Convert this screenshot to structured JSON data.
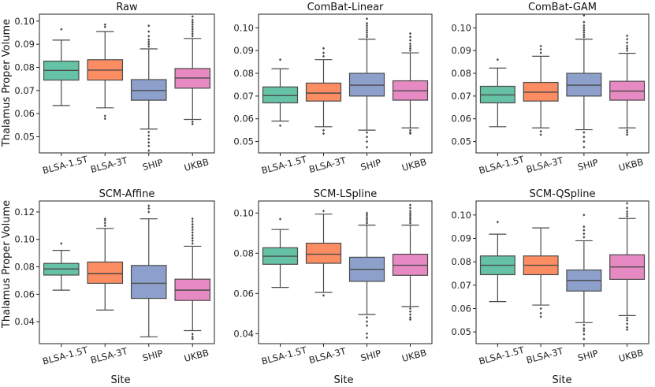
{
  "figure": {
    "ylabel": "Thalamus Proper Volume",
    "xlabel": "Site"
  },
  "colors": {
    "BLSA-1.5T": "#66c2a5",
    "BLSA-3T": "#fc8d62",
    "SHIP": "#8da0cb",
    "UKBB": "#e78ac3",
    "line": "#4a4a4a"
  },
  "chart_data": [
    {
      "type": "box",
      "title": "Raw",
      "categories": [
        "BLSA-1.5T",
        "BLSA-3T",
        "SHIP",
        "UKBB"
      ],
      "ylim": [
        0.043,
        0.103
      ],
      "yticks": [
        0.05,
        0.06,
        0.07,
        0.08,
        0.09,
        0.1
      ],
      "ytick_labels": [
        "0.05",
        "0.06",
        "0.07",
        "0.08",
        "0.09",
        "0.10"
      ],
      "boxes": [
        {
          "min": 0.0635,
          "q1": 0.0745,
          "median": 0.0787,
          "q3": 0.0827,
          "max": 0.0918,
          "outliers": [
            0.0965
          ]
        },
        {
          "min": 0.0625,
          "q1": 0.0745,
          "median": 0.0788,
          "q3": 0.0833,
          "max": 0.0955,
          "outliers": [
            0.0975,
            0.0985,
            0.059,
            0.0578
          ]
        },
        {
          "min": 0.0533,
          "q1": 0.0658,
          "median": 0.07,
          "q3": 0.0747,
          "max": 0.088,
          "outliers": [
            0.089,
            0.09,
            0.091,
            0.092,
            0.0935,
            0.0955,
            0.098,
            0.052,
            0.0505,
            0.049,
            0.0475,
            0.046,
            0.044
          ]
        },
        {
          "min": 0.0575,
          "q1": 0.071,
          "median": 0.0754,
          "q3": 0.0795,
          "max": 0.0925,
          "outliers": [
            0.0935,
            0.0945,
            0.0955,
            0.0965,
            0.0975,
            0.0985,
            0.0995,
            0.1005,
            0.102,
            0.0565,
            0.0555
          ]
        }
      ]
    },
    {
      "type": "box",
      "title": "ComBat-Linear",
      "categories": [
        "BLSA-1.5T",
        "BLSA-3T",
        "SHIP",
        "UKBB"
      ],
      "ylim": [
        0.045,
        0.106
      ],
      "yticks": [
        0.05,
        0.06,
        0.07,
        0.08,
        0.09,
        0.1
      ],
      "ytick_labels": [
        "0.05",
        "0.06",
        "0.07",
        "0.08",
        "0.09",
        "0.10"
      ],
      "boxes": [
        {
          "min": 0.059,
          "q1": 0.067,
          "median": 0.0702,
          "q3": 0.074,
          "max": 0.082,
          "outliers": [
            0.086,
            0.057
          ]
        },
        {
          "min": 0.0565,
          "q1": 0.0678,
          "median": 0.0713,
          "q3": 0.0757,
          "max": 0.086,
          "outliers": [
            0.0875,
            0.089,
            0.091,
            0.055,
            0.0535
          ]
        },
        {
          "min": 0.055,
          "q1": 0.07,
          "median": 0.0748,
          "q3": 0.08,
          "max": 0.095,
          "outliers": [
            0.096,
            0.097,
            0.098,
            0.099,
            0.1,
            0.101,
            0.102,
            0.104,
            0.054,
            0.052,
            0.05,
            0.0475
          ]
        },
        {
          "min": 0.056,
          "q1": 0.0682,
          "median": 0.0723,
          "q3": 0.0767,
          "max": 0.089,
          "outliers": [
            0.09,
            0.091,
            0.092,
            0.093,
            0.0945,
            0.096,
            0.0975,
            0.055,
            0.054,
            0.0535
          ]
        }
      ]
    },
    {
      "type": "box",
      "title": "ComBat-GAM",
      "categories": [
        "BLSA-1.5T",
        "BLSA-3T",
        "SHIP",
        "UKBB"
      ],
      "ylim": [
        0.045,
        0.106
      ],
      "yticks": [
        0.05,
        0.06,
        0.07,
        0.08,
        0.09,
        0.1
      ],
      "ytick_labels": [
        "0.05",
        "0.06",
        "0.07",
        "0.08",
        "0.09",
        "0.10"
      ],
      "boxes": [
        {
          "min": 0.0565,
          "q1": 0.067,
          "median": 0.0705,
          "q3": 0.0743,
          "max": 0.0823,
          "outliers": [
            0.086
          ]
        },
        {
          "min": 0.056,
          "q1": 0.0678,
          "median": 0.0717,
          "q3": 0.076,
          "max": 0.0875,
          "outliers": [
            0.089,
            0.0905,
            0.092,
            0.0545,
            0.053
          ]
        },
        {
          "min": 0.0552,
          "q1": 0.07,
          "median": 0.0748,
          "q3": 0.08,
          "max": 0.095,
          "outliers": [
            0.096,
            0.097,
            0.098,
            0.099,
            0.1,
            0.101,
            0.1025,
            0.1055,
            0.054,
            0.052,
            0.05,
            0.0475
          ]
        },
        {
          "min": 0.056,
          "q1": 0.0682,
          "median": 0.0722,
          "q3": 0.0765,
          "max": 0.0888,
          "outliers": [
            0.09,
            0.091,
            0.092,
            0.0935,
            0.095,
            0.0965,
            0.055,
            0.054,
            0.053
          ]
        }
      ]
    },
    {
      "type": "box",
      "title": "SCM-Affine",
      "categories": [
        "BLSA-1.5T",
        "BLSA-3T",
        "SHIP",
        "UKBB"
      ],
      "ylim": [
        0.024,
        0.128
      ],
      "yticks": [
        0.04,
        0.06,
        0.08,
        0.1,
        0.12
      ],
      "ytick_labels": [
        "0.04",
        "0.06",
        "0.08",
        "0.10",
        "0.12"
      ],
      "boxes": [
        {
          "min": 0.063,
          "q1": 0.074,
          "median": 0.0785,
          "q3": 0.0825,
          "max": 0.092,
          "outliers": [
            0.097
          ]
        },
        {
          "min": 0.0485,
          "q1": 0.068,
          "median": 0.075,
          "q3": 0.0835,
          "max": 0.108,
          "outliers": [
            0.11,
            0.112,
            0.114,
            0.115
          ]
        },
        {
          "min": 0.029,
          "q1": 0.057,
          "median": 0.068,
          "q3": 0.081,
          "max": 0.115,
          "outliers": [
            0.12,
            0.1225,
            0.1245
          ]
        },
        {
          "min": 0.0335,
          "q1": 0.0555,
          "median": 0.063,
          "q3": 0.071,
          "max": 0.095,
          "outliers": [
            0.097,
            0.099,
            0.101,
            0.103,
            0.105,
            0.107,
            0.109,
            0.111,
            0.113,
            0.115,
            0.031,
            0.029,
            0.0275
          ]
        }
      ]
    },
    {
      "type": "box",
      "title": "SCM-LSpline",
      "categories": [
        "BLSA-1.5T",
        "BLSA-3T",
        "SHIP",
        "UKBB"
      ],
      "ylim": [
        0.035,
        0.106
      ],
      "yticks": [
        0.04,
        0.06,
        0.08,
        0.1
      ],
      "ytick_labels": [
        "0.04",
        "0.06",
        "0.08",
        "0.10"
      ],
      "boxes": [
        {
          "min": 0.063,
          "q1": 0.0745,
          "median": 0.0785,
          "q3": 0.0827,
          "max": 0.0918,
          "outliers": [
            0.097
          ]
        },
        {
          "min": 0.0605,
          "q1": 0.075,
          "median": 0.0795,
          "q3": 0.085,
          "max": 0.0995,
          "outliers": [
            0.101,
            0.059
          ]
        },
        {
          "min": 0.0495,
          "q1": 0.066,
          "median": 0.072,
          "q3": 0.078,
          "max": 0.094,
          "outliers": [
            0.095,
            0.096,
            0.097,
            0.098,
            0.099,
            0.1,
            0.048,
            0.046,
            0.044,
            0.04,
            0.038
          ]
        },
        {
          "min": 0.0535,
          "q1": 0.069,
          "median": 0.074,
          "q3": 0.0795,
          "max": 0.094,
          "outliers": [
            0.095,
            0.096,
            0.097,
            0.098,
            0.099,
            0.1,
            0.101,
            0.1025,
            0.104,
            0.0525,
            0.051,
            0.0495,
            0.048,
            0.047
          ]
        }
      ]
    },
    {
      "type": "box",
      "title": "SCM-QSpline",
      "categories": [
        "BLSA-1.5T",
        "BLSA-3T",
        "SHIP",
        "UKBB"
      ],
      "ylim": [
        0.045,
        0.106
      ],
      "yticks": [
        0.05,
        0.06,
        0.07,
        0.08,
        0.09,
        0.1
      ],
      "ytick_labels": [
        "0.05",
        "0.06",
        "0.07",
        "0.08",
        "0.09",
        "0.10"
      ],
      "boxes": [
        {
          "min": 0.063,
          "q1": 0.0745,
          "median": 0.0785,
          "q3": 0.0825,
          "max": 0.0918,
          "outliers": [
            0.097
          ]
        },
        {
          "min": 0.0615,
          "q1": 0.0745,
          "median": 0.0785,
          "q3": 0.0825,
          "max": 0.0945,
          "outliers": [
            0.06,
            0.058,
            0.0565
          ]
        },
        {
          "min": 0.054,
          "q1": 0.0675,
          "median": 0.072,
          "q3": 0.0765,
          "max": 0.089,
          "outliers": [
            0.0905,
            0.092,
            0.0935,
            0.095,
            0.1,
            0.053,
            0.0515,
            0.0505,
            0.049,
            0.047
          ]
        },
        {
          "min": 0.057,
          "q1": 0.0725,
          "median": 0.0778,
          "q3": 0.083,
          "max": 0.0985,
          "outliers": [
            0.0995,
            0.1005,
            0.1015,
            0.103,
            0.105,
            0.056,
            0.055,
            0.0535,
            0.052,
            0.051
          ]
        }
      ]
    }
  ]
}
